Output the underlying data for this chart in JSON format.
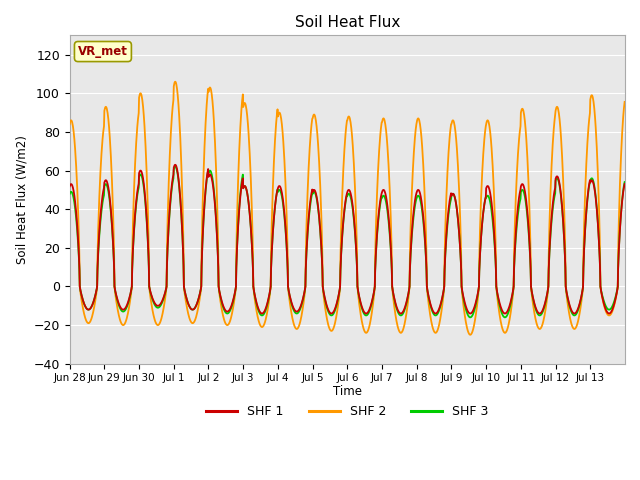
{
  "title": "Soil Heat Flux",
  "ylabel": "Soil Heat Flux (W/m2)",
  "xlabel": "Time",
  "ylim": [
    -40,
    130
  ],
  "yticks": [
    -40,
    -20,
    0,
    20,
    40,
    60,
    80,
    100,
    120
  ],
  "colors": {
    "SHF 1": "#cc0000",
    "SHF 2": "#ff9900",
    "SHF 3": "#00cc00"
  },
  "legend_labels": [
    "SHF 1",
    "SHF 2",
    "SHF 3"
  ],
  "annotation_text": "VR_met",
  "annotation_color": "#990000",
  "annotation_bg": "#ffffcc",
  "bg_color": "#e8e8e8",
  "grid_color": "white",
  "num_days": 16,
  "pts_per_day": 96,
  "peak_hour": 13.0,
  "xtick_labels": [
    "Jun 28",
    "Jun 29",
    "Jun 30",
    "Jul 1",
    "Jul 2",
    "Jul 3",
    "Jul 4",
    "Jul 5",
    "Jul 6",
    "Jul 7",
    "Jul 8",
    "Jul 9",
    "Jul 10",
    "Jul 11",
    "Jul 12",
    "Jul 13"
  ],
  "shf1_peaks": [
    53,
    55,
    60,
    63,
    58,
    52,
    52,
    50,
    50,
    50,
    50,
    48,
    52,
    53,
    57,
    55
  ],
  "shf1_mins": [
    -12,
    -12,
    -10,
    -12,
    -13,
    -14,
    -13,
    -14,
    -14,
    -14,
    -14,
    -14,
    -14,
    -14,
    -14,
    -14
  ],
  "shf2_peaks": [
    86,
    93,
    100,
    106,
    103,
    95,
    90,
    89,
    88,
    87,
    87,
    86,
    86,
    92,
    93,
    99
  ],
  "shf2_mins": [
    -19,
    -20,
    -20,
    -19,
    -20,
    -21,
    -22,
    -23,
    -24,
    -24,
    -24,
    -25,
    -24,
    -22,
    -22,
    -15
  ],
  "shf3_peaks": [
    49,
    53,
    58,
    62,
    60,
    52,
    50,
    49,
    48,
    47,
    47,
    48,
    47,
    50,
    56,
    56
  ],
  "shf3_mins": [
    -12,
    -13,
    -11,
    -12,
    -14,
    -15,
    -14,
    -15,
    -15,
    -15,
    -15,
    -16,
    -16,
    -15,
    -15,
    -12
  ]
}
